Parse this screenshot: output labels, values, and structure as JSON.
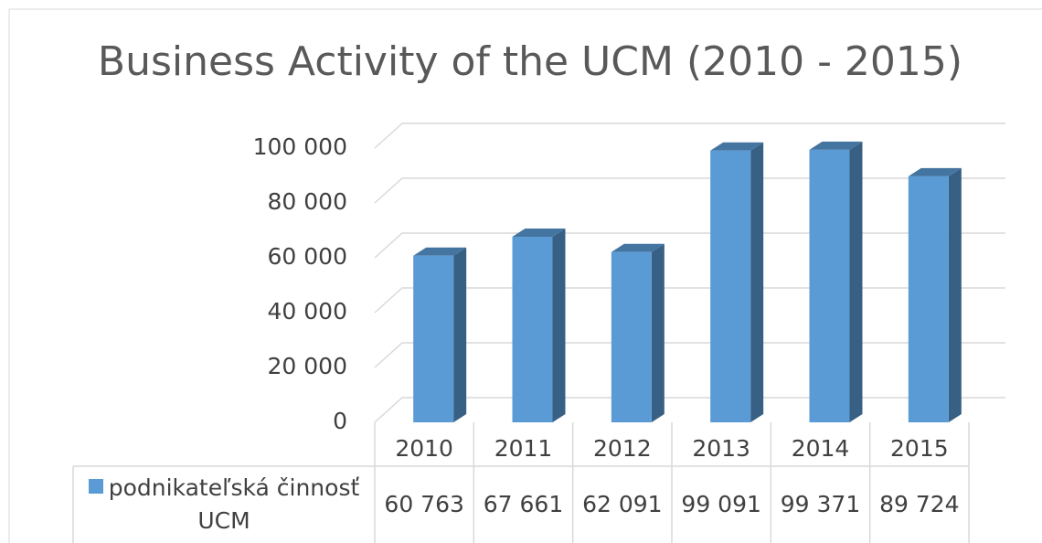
{
  "chart_data": {
    "type": "bar3d",
    "title": "Business Activity of the UCM (2010 - 2015)",
    "categories": [
      "2010",
      "2011",
      "2012",
      "2013",
      "2014",
      "2015"
    ],
    "series": [
      {
        "name": "podnikateľská činnosť UCM",
        "color": "#5b9bd5",
        "values": [
          60763,
          67661,
          62091,
          99091,
          99371,
          89724
        ],
        "value_labels": [
          "60 763",
          "67 661",
          "62 091",
          "99 091",
          "99 371",
          "89 724"
        ]
      }
    ],
    "ylim": [
      0,
      100000
    ],
    "yticks": [
      0,
      {
        "value": 20000,
        "label": "20 000"
      },
      {
        "value": 40000,
        "label": "40 000"
      },
      {
        "value": 60000,
        "label": "60 000"
      },
      {
        "value": 80000,
        "label": "80 000"
      },
      {
        "value": 100000,
        "label": "100 000"
      }
    ],
    "grid": true,
    "data_table": true
  }
}
